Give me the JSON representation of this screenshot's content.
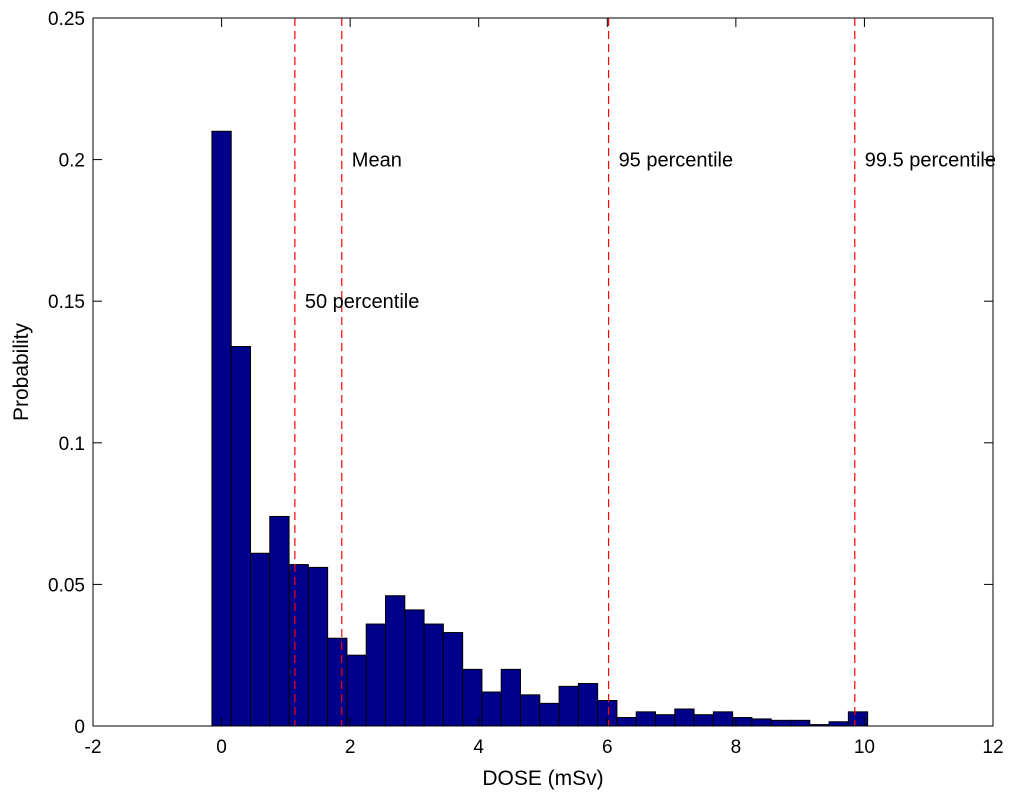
{
  "chart_data": {
    "type": "bar",
    "title": "",
    "xlabel": "DOSE (mSv)",
    "ylabel": "Probability",
    "xlim": [
      -2,
      12
    ],
    "ylim": [
      0,
      0.25
    ],
    "xticks": [
      -2,
      0,
      2,
      4,
      6,
      8,
      10,
      12
    ],
    "xtick_labels": [
      "-2",
      "0",
      "2",
      "4",
      "6",
      "8",
      "10",
      "12"
    ],
    "yticks": [
      0,
      0.05,
      0.1,
      0.15,
      0.2,
      0.25
    ],
    "ytick_labels": [
      "0",
      "0.05",
      "0.1",
      "0.15",
      "0.2",
      "0.25"
    ],
    "bin_width": 0.3,
    "bar_color": "#00008B",
    "bar_edge_color": "#000000",
    "bin_centers": [
      0.0,
      0.3,
      0.6,
      0.9,
      1.2,
      1.5,
      1.8,
      2.1,
      2.4,
      2.7,
      3.0,
      3.3,
      3.6,
      3.9,
      4.2,
      4.5,
      4.8,
      5.1,
      5.4,
      5.7,
      6.0,
      6.3,
      6.6,
      6.9,
      7.2,
      7.5,
      7.8,
      8.1,
      8.4,
      8.7,
      9.0,
      9.3,
      9.6,
      9.9
    ],
    "values": [
      0.21,
      0.134,
      0.061,
      0.074,
      0.057,
      0.056,
      0.031,
      0.025,
      0.036,
      0.046,
      0.041,
      0.036,
      0.033,
      0.02,
      0.012,
      0.02,
      0.011,
      0.008,
      0.014,
      0.015,
      0.009,
      0.003,
      0.005,
      0.004,
      0.006,
      0.004,
      0.005,
      0.003,
      0.0025,
      0.002,
      0.002,
      0.0005,
      0.0015,
      0.005
    ],
    "grid": false,
    "reference_lines": [
      {
        "label": "50 percentile",
        "x": 1.14,
        "label_y": 0.15,
        "color": "#FF0000",
        "style": "dashed"
      },
      {
        "label": "Mean",
        "x": 1.87,
        "label_y": 0.2,
        "color": "#FF0000",
        "style": "dashed"
      },
      {
        "label": "95 percentile",
        "x": 6.02,
        "label_y": 0.2,
        "color": "#FF0000",
        "style": "dashed"
      },
      {
        "label": "99.5 percentile",
        "x": 9.85,
        "label_y": 0.2,
        "color": "#FF0000",
        "style": "dashed"
      }
    ]
  }
}
